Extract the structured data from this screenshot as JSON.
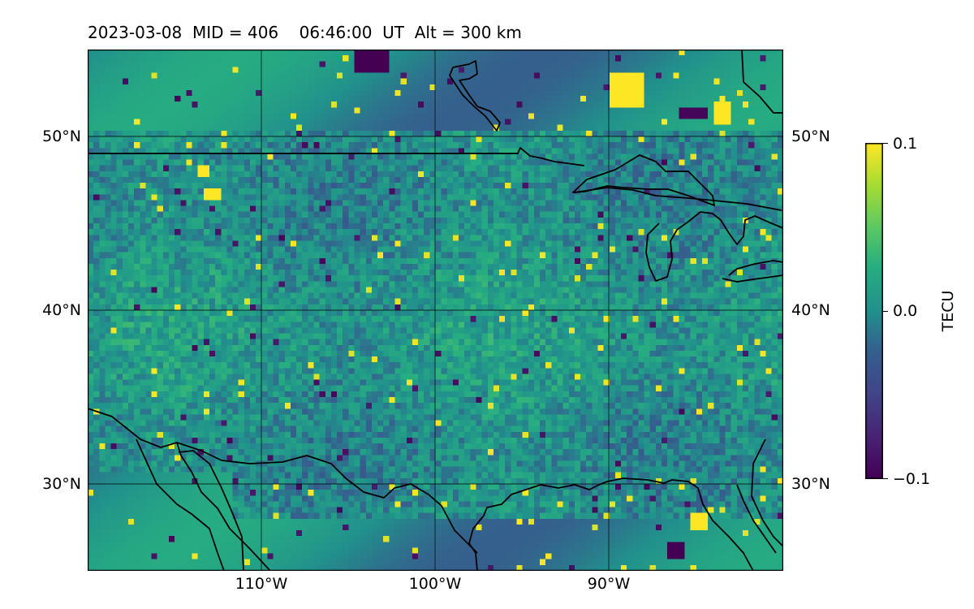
{
  "title": {
    "date": "2023-03-08",
    "mid": "MID = 406",
    "time": "06:46:00  UT",
    "alt": "Alt = 300 km"
  },
  "map": {
    "region": "North America (central US)",
    "projection": "lat-lon",
    "lon_range_deg": [
      -120,
      -80
    ],
    "lat_range_deg": [
      25,
      55
    ],
    "lat_ticks": [
      {
        "value": 30,
        "label": "30°N"
      },
      {
        "value": 40,
        "label": "40°N"
      },
      {
        "value": 50,
        "label": "50°N"
      }
    ],
    "lon_ticks": [
      {
        "value": -110,
        "label": "110°W"
      },
      {
        "value": -100,
        "label": "100°W"
      },
      {
        "value": -90,
        "label": "90°W"
      }
    ],
    "gridlines": true,
    "features": [
      "coastlines",
      "country borders",
      "Great Lakes",
      "Gulf of Mexico"
    ]
  },
  "colorbar": {
    "label": "TECU",
    "colormap": "viridis",
    "range": [
      -0.1,
      0.1
    ],
    "ticks": [
      {
        "value": 0.1,
        "label": "0.1"
      },
      {
        "value": 0.0,
        "label": "0.0"
      },
      {
        "value": -0.1,
        "label": "−0.1"
      }
    ]
  },
  "colors": {
    "viridis_low": "#440154",
    "viridis_mid": "#21908d",
    "viridis_high": "#fde725"
  }
}
